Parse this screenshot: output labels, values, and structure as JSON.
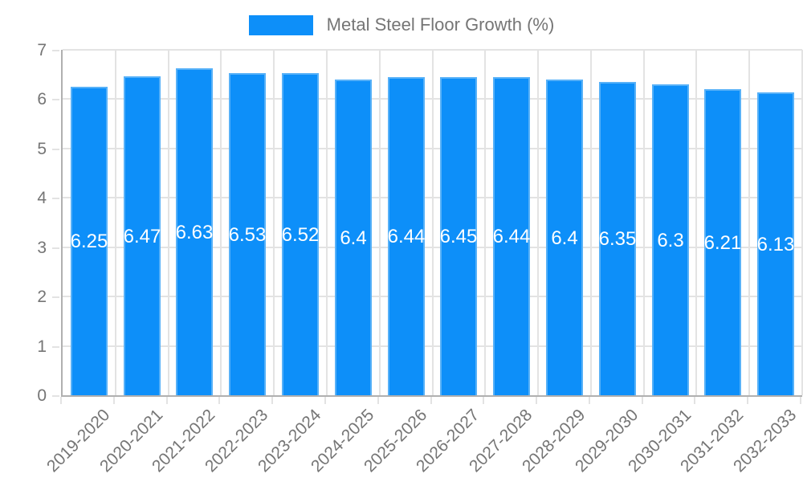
{
  "legend": {
    "label": "Metal Steel Floor Growth (%)"
  },
  "colors": {
    "bar_fill": "#0d8ff9",
    "bar_border": "#57b1f8",
    "grid": "#e3e3e3",
    "axis": "#b0b0b0",
    "tick_label": "#757575",
    "value_label": "#ffffff",
    "background": "#ffffff"
  },
  "chart_data": {
    "type": "bar",
    "title": "Metal Steel Floor Growth (%)",
    "categories": [
      "2019-2020",
      "2020-2021",
      "2021-2022",
      "2022-2023",
      "2023-2024",
      "2024-2025",
      "2025-2026",
      "2026-2027",
      "2027-2028",
      "2028-2029",
      "2029-2030",
      "2030-2031",
      "2031-2032",
      "2032-2033"
    ],
    "values": [
      6.25,
      6.47,
      6.63,
      6.53,
      6.52,
      6.4,
      6.44,
      6.45,
      6.44,
      6.4,
      6.35,
      6.3,
      6.21,
      6.13
    ],
    "xlabel": "",
    "ylabel": "",
    "ylim": [
      0,
      7
    ],
    "yticks": [
      0,
      1,
      2,
      3,
      4,
      5,
      6,
      7
    ],
    "grid": true,
    "legend_position": "top",
    "value_labels": "inside-center"
  }
}
